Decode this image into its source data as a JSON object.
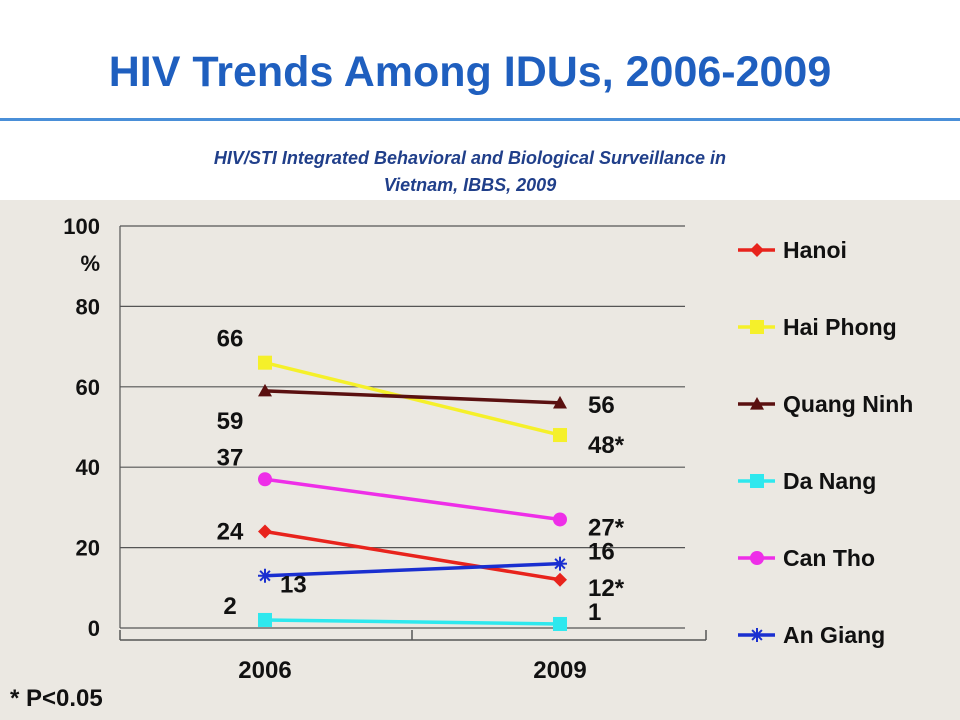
{
  "slide": {
    "title": "HIV Trends Among IDUs, 2006-2009",
    "subtitle_line1": "HIV/STI Integrated Behavioral and Biological Surveillance in",
    "subtitle_line2": "Vietnam, IBBS, 2009",
    "footnote": "* P<0.05"
  },
  "chart_data": {
    "type": "line",
    "title": "",
    "xlabel": "",
    "ylabel": "%",
    "categories": [
      "2006",
      "2009"
    ],
    "ylim": [
      0,
      100
    ],
    "yticks": [
      "0",
      "20",
      "40",
      "60",
      "80",
      "100"
    ],
    "grid": true,
    "legend_position": "right",
    "series": [
      {
        "name": "Hanoi",
        "values": [
          24,
          12
        ],
        "labels": [
          "24",
          "12*"
        ],
        "color": "#e8231c",
        "marker": "diamond"
      },
      {
        "name": "Hai Phong",
        "values": [
          66,
          48
        ],
        "labels": [
          "66",
          "48*"
        ],
        "color": "#f5f02a",
        "marker": "square"
      },
      {
        "name": "Quang Ninh",
        "values": [
          59,
          56
        ],
        "labels": [
          "59",
          "56"
        ],
        "color": "#5a1010",
        "marker": "triangle"
      },
      {
        "name": "Da Nang",
        "values": [
          2,
          1
        ],
        "labels": [
          "2",
          "1"
        ],
        "color": "#2ee8ee",
        "marker": "square"
      },
      {
        "name": "Can Tho",
        "values": [
          37,
          27
        ],
        "labels": [
          "37",
          "27*"
        ],
        "color": "#ee2ee8",
        "marker": "circle"
      },
      {
        "name": "An Giang",
        "values": [
          13,
          16
        ],
        "labels": [
          "13",
          "16"
        ],
        "color": "#1a2fd0",
        "marker": "star"
      }
    ]
  }
}
